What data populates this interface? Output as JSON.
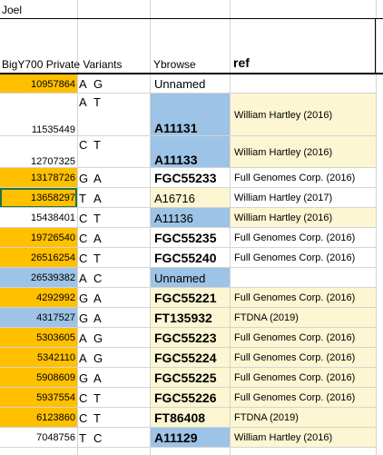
{
  "sheet": {
    "owner_label": "Joel",
    "headers": {
      "variants": "BigY700 Private Variants",
      "ybrowse": "Ybrowse",
      "ref": "ref"
    }
  },
  "rows": [
    {
      "pos": "10957864",
      "a": "A",
      "b": "G",
      "snp": "Unnamed",
      "snp_bold": false,
      "ref": "",
      "pos_bg": "orange",
      "snp_bg": "",
      "ref_bg": "",
      "h": 21
    },
    {
      "pos": "11535449",
      "a": "A",
      "b": "T",
      "snp": "A11131",
      "snp_bold": true,
      "ref": "William Hartley (2016)",
      "pos_bg": "",
      "snp_bg": "blue",
      "ref_bg": "ly",
      "h": 47
    },
    {
      "pos": "12707325",
      "a": "C",
      "b": "T",
      "snp": "A11133",
      "snp_bold": true,
      "ref": "William Hartley (2016)",
      "pos_bg": "",
      "snp_bg": "blue",
      "ref_bg": "ly",
      "h": 35
    },
    {
      "pos": "13178726",
      "a": "G",
      "b": "A",
      "snp": "FGC55233",
      "snp_bold": true,
      "ref": "Full Genomes Corp. (2016)",
      "pos_bg": "orange",
      "snp_bg": "",
      "ref_bg": "",
      "h": 22
    },
    {
      "pos": "13658297",
      "a": "T",
      "b": "A",
      "snp": "A16716",
      "snp_bold": false,
      "ref": "William Hartley (2017)",
      "pos_bg": "orange",
      "snp_bg": "ly",
      "ref_bg": "",
      "h": 22,
      "selected": true
    },
    {
      "pos": "15438401",
      "a": "C",
      "b": "T",
      "snp": "A11136",
      "snp_bold": false,
      "ref": "William Hartley (2016)",
      "pos_bg": "",
      "snp_bg": "blue",
      "ref_bg": "ly",
      "h": 22
    },
    {
      "pos": "19726540",
      "a": "C",
      "b": "A",
      "snp": "FGC55235",
      "snp_bold": true,
      "ref": "Full Genomes Corp. (2016)",
      "pos_bg": "orange",
      "snp_bg": "",
      "ref_bg": "",
      "h": 22
    },
    {
      "pos": "26516254",
      "a": "C",
      "b": "T",
      "snp": "FGC55240",
      "snp_bold": true,
      "ref": "Full Genomes Corp. (2016)",
      "pos_bg": "orange",
      "snp_bg": "",
      "ref_bg": "",
      "h": 22
    },
    {
      "pos": "26539382",
      "a": "A",
      "b": "C",
      "snp": "Unnamed",
      "snp_bold": false,
      "ref": "",
      "pos_bg": "blue",
      "snp_bg": "blue",
      "ref_bg": "",
      "h": 22
    },
    {
      "pos": "4292992",
      "a": "G",
      "b": "A",
      "snp": "FGC55221",
      "snp_bold": true,
      "ref": "Full Genomes Corp. (2016)",
      "pos_bg": "orange",
      "snp_bg": "ly",
      "ref_bg": "ly",
      "h": 22
    },
    {
      "pos": "4317527",
      "a": "G",
      "b": "A",
      "snp": "FT135932",
      "snp_bold": true,
      "ref": "FTDNA (2019)",
      "pos_bg": "blue",
      "snp_bg": "ly",
      "ref_bg": "ly",
      "h": 22
    },
    {
      "pos": "5303605",
      "a": "A",
      "b": "G",
      "snp": "FGC55223",
      "snp_bold": true,
      "ref": "Full Genomes Corp. (2016)",
      "pos_bg": "orange",
      "snp_bg": "ly",
      "ref_bg": "ly",
      "h": 22
    },
    {
      "pos": "5342110",
      "a": "A",
      "b": "G",
      "snp": "FGC55224",
      "snp_bold": true,
      "ref": "Full Genomes Corp. (2016)",
      "pos_bg": "orange",
      "snp_bg": "ly",
      "ref_bg": "ly",
      "h": 22
    },
    {
      "pos": "5908609",
      "a": "G",
      "b": "A",
      "snp": "FGC55225",
      "snp_bold": true,
      "ref": "Full Genomes Corp. (2016)",
      "pos_bg": "orange",
      "snp_bg": "ly",
      "ref_bg": "ly",
      "h": 22
    },
    {
      "pos": "5937554",
      "a": "C",
      "b": "T",
      "snp": "FGC55226",
      "snp_bold": true,
      "ref": "Full Genomes Corp. (2016)",
      "pos_bg": "orange",
      "snp_bg": "ly",
      "ref_bg": "ly",
      "h": 22
    },
    {
      "pos": "6123860",
      "a": "C",
      "b": "T",
      "snp": "FT86408",
      "snp_bold": true,
      "ref": "FTDNA (2019)",
      "pos_bg": "orange",
      "snp_bg": "ly",
      "ref_bg": "ly",
      "h": 22
    },
    {
      "pos": "7048756",
      "a": "T",
      "b": "C",
      "snp": "A11129",
      "snp_bold": true,
      "ref": "William Hartley (2016)",
      "pos_bg": "",
      "snp_bg": "blue",
      "ref_bg": "ly",
      "h": 22
    }
  ]
}
